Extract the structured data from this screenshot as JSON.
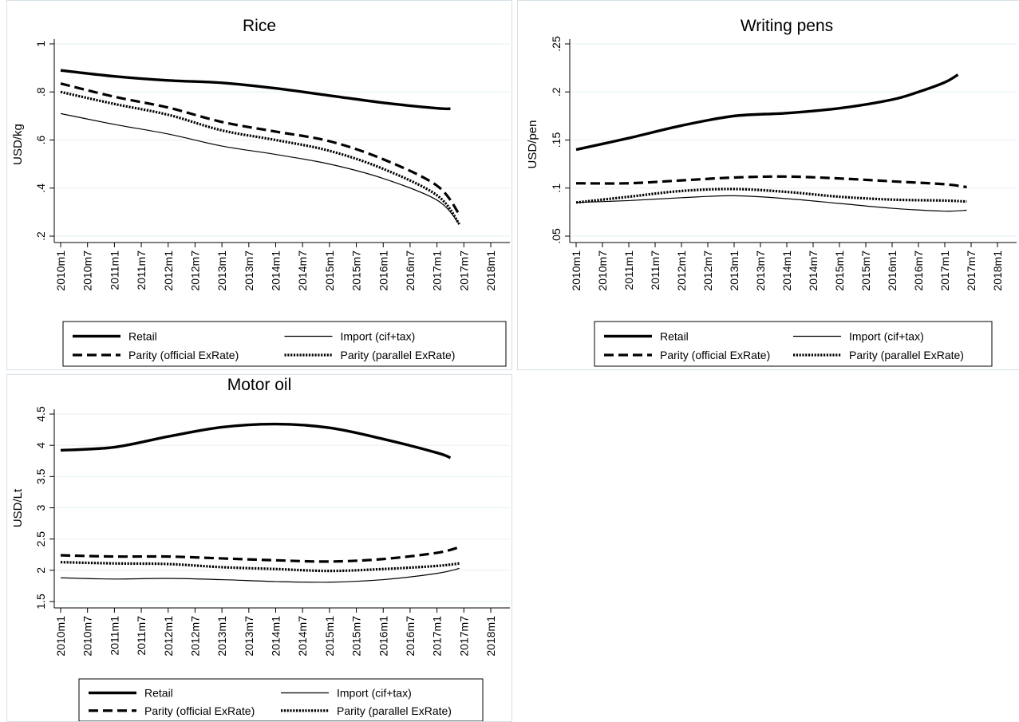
{
  "x_tick_labels": [
    "2010m1",
    "2010m7",
    "2011m1",
    "2011m7",
    "2012m1",
    "2012m7",
    "2013m1",
    "2013m7",
    "2014m1",
    "2014m7",
    "2015m1",
    "2015m7",
    "2016m1",
    "2016m7",
    "2017m1",
    "2017m7",
    "2018m1"
  ],
  "legend": {
    "retail": "Retail",
    "import": "Import (cif+tax)",
    "parity_official": "Parity (official ExRate)",
    "parity_parallel": "Parity (parallel ExRate)"
  },
  "colors": {
    "panel_border": "#d6e0e6",
    "grid": "#eaf2f3",
    "line": "#000000"
  },
  "chart_data": [
    {
      "type": "line",
      "title": "Rice",
      "xlabel": "",
      "ylabel": "USD/kg",
      "x_unit": "month",
      "xlim": [
        "2010m1",
        "2018m1"
      ],
      "ylim": [
        0.2,
        1.0
      ],
      "yticks": [
        0.2,
        0.4,
        0.6,
        0.8,
        1.0
      ],
      "ytick_labels": [
        ".2",
        ".4",
        ".6",
        ".8",
        "1"
      ],
      "grid": true,
      "legend_position": "bottom",
      "series": [
        {
          "key": "retail",
          "style": "thick-solid",
          "x": [
            "2010m1",
            "2011m1",
            "2012m1",
            "2013m1",
            "2014m1",
            "2015m1",
            "2016m1",
            "2017m1",
            "2017m4"
          ],
          "y": [
            0.89,
            0.865,
            0.848,
            0.838,
            0.815,
            0.785,
            0.755,
            0.732,
            0.73
          ]
        },
        {
          "key": "import",
          "style": "thin-solid",
          "x": [
            "2010m1",
            "2011m1",
            "2012m1",
            "2013m1",
            "2014m1",
            "2015m1",
            "2016m1",
            "2017m1",
            "2017m6"
          ],
          "y": [
            0.71,
            0.665,
            0.625,
            0.575,
            0.54,
            0.5,
            0.44,
            0.35,
            0.25
          ]
        },
        {
          "key": "parity_official",
          "style": "dashed",
          "x": [
            "2010m1",
            "2011m1",
            "2012m1",
            "2013m1",
            "2014m1",
            "2015m1",
            "2016m1",
            "2017m1",
            "2017m6"
          ],
          "y": [
            0.835,
            0.78,
            0.735,
            0.675,
            0.635,
            0.595,
            0.52,
            0.41,
            0.29
          ]
        },
        {
          "key": "parity_parallel",
          "style": "dotted",
          "x": [
            "2010m1",
            "2011m1",
            "2012m1",
            "2013m1",
            "2014m1",
            "2015m1",
            "2016m1",
            "2017m1",
            "2017m6"
          ],
          "y": [
            0.8,
            0.75,
            0.705,
            0.64,
            0.6,
            0.555,
            0.48,
            0.37,
            0.25
          ]
        }
      ]
    },
    {
      "type": "line",
      "title": "Writing pens",
      "xlabel": "",
      "ylabel": "USD/pen",
      "x_unit": "month",
      "xlim": [
        "2010m1",
        "2018m1"
      ],
      "ylim": [
        0.05,
        0.25
      ],
      "yticks": [
        0.05,
        0.1,
        0.15,
        0.2,
        0.25
      ],
      "ytick_labels": [
        ".05",
        ".1",
        ".15",
        ".2",
        ".25"
      ],
      "grid": true,
      "legend_position": "bottom",
      "series": [
        {
          "key": "retail",
          "style": "thick-solid",
          "x": [
            "2010m1",
            "2011m1",
            "2012m1",
            "2013m1",
            "2014m1",
            "2015m1",
            "2016m1",
            "2016m7",
            "2017m1",
            "2017m4"
          ],
          "y": [
            0.14,
            0.152,
            0.165,
            0.175,
            0.178,
            0.183,
            0.192,
            0.2,
            0.21,
            0.218
          ]
        },
        {
          "key": "import",
          "style": "thin-solid",
          "x": [
            "2010m1",
            "2011m1",
            "2012m1",
            "2013m1",
            "2014m1",
            "2015m1",
            "2016m1",
            "2017m1",
            "2017m6"
          ],
          "y": [
            0.085,
            0.087,
            0.09,
            0.092,
            0.089,
            0.084,
            0.079,
            0.076,
            0.077
          ]
        },
        {
          "key": "parity_official",
          "style": "dashed",
          "x": [
            "2010m1",
            "2011m1",
            "2012m1",
            "2013m1",
            "2014m1",
            "2015m1",
            "2016m1",
            "2017m1",
            "2017m6"
          ],
          "y": [
            0.105,
            0.105,
            0.108,
            0.111,
            0.112,
            0.11,
            0.107,
            0.104,
            0.101
          ]
        },
        {
          "key": "parity_parallel",
          "style": "dotted",
          "x": [
            "2010m1",
            "2011m1",
            "2012m1",
            "2013m1",
            "2014m1",
            "2015m1",
            "2016m1",
            "2017m1",
            "2017m6"
          ],
          "y": [
            0.085,
            0.091,
            0.097,
            0.099,
            0.096,
            0.091,
            0.088,
            0.087,
            0.086
          ]
        }
      ]
    },
    {
      "type": "line",
      "title": "Motor oil",
      "xlabel": "",
      "ylabel": "USD/Lt",
      "x_unit": "month",
      "xlim": [
        "2010m1",
        "2018m1"
      ],
      "ylim": [
        1.5,
        4.5
      ],
      "yticks": [
        1.5,
        2,
        2.5,
        3,
        3.5,
        4,
        4.5
      ],
      "ytick_labels": [
        "1.5",
        "2",
        "2.5",
        "3",
        "3.5",
        "4",
        "4.5"
      ],
      "grid": true,
      "legend_position": "bottom",
      "series": [
        {
          "key": "retail",
          "style": "thick-solid",
          "x": [
            "2010m1",
            "2011m1",
            "2012m1",
            "2013m1",
            "2014m1",
            "2015m1",
            "2016m1",
            "2017m1",
            "2017m4"
          ],
          "y": [
            3.92,
            3.97,
            4.14,
            4.29,
            4.34,
            4.28,
            4.1,
            3.88,
            3.8
          ]
        },
        {
          "key": "import",
          "style": "thin-solid",
          "x": [
            "2010m1",
            "2011m1",
            "2012m1",
            "2013m1",
            "2014m1",
            "2015m1",
            "2016m1",
            "2017m1",
            "2017m6"
          ],
          "y": [
            1.88,
            1.86,
            1.87,
            1.85,
            1.82,
            1.81,
            1.85,
            1.95,
            2.03
          ]
        },
        {
          "key": "parity_official",
          "style": "dashed",
          "x": [
            "2010m1",
            "2011m1",
            "2012m1",
            "2013m1",
            "2014m1",
            "2015m1",
            "2016m1",
            "2017m1",
            "2017m6"
          ],
          "y": [
            2.24,
            2.22,
            2.22,
            2.19,
            2.16,
            2.14,
            2.18,
            2.28,
            2.37
          ]
        },
        {
          "key": "parity_parallel",
          "style": "dotted",
          "x": [
            "2010m1",
            "2011m1",
            "2012m1",
            "2013m1",
            "2014m1",
            "2015m1",
            "2016m1",
            "2017m1",
            "2017m6"
          ],
          "y": [
            2.13,
            2.11,
            2.1,
            2.05,
            2.02,
            1.99,
            2.02,
            2.07,
            2.11
          ]
        }
      ]
    }
  ]
}
